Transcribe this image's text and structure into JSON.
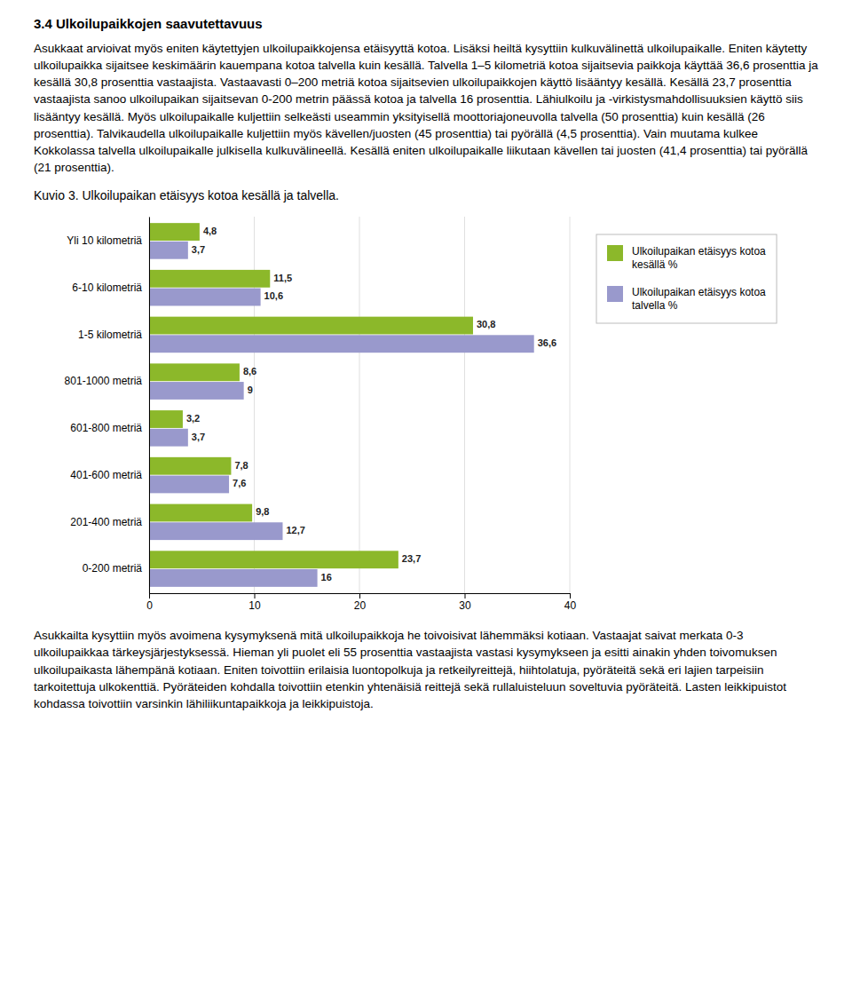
{
  "chart_data": {
    "type": "bar",
    "orientation": "horizontal",
    "title": "Kuvio 3. Ulkoilupaikan etäisyys kotoa kesällä ja talvella.",
    "annotations": [
      "3.4 Ulkoilupaikkojen saavutettavuus",
      "Asukkaat arvioivat myös eniten käytettyjen ulkoilupaikkojensa etäisyyttä kotoa. Lisäksi heiltä kysyttiin kulkuvälinettä ulkoilupaikalle. Eniten käytetty ulkoilupaikka sijaitsee keskimäärin kauempana kotoa talvella kuin kesällä. Talvella 1–5 kilometriä kotoa sijaitsevia paikkoja käyttää 36,6 prosenttia ja kesällä 30,8 prosenttia vastaajista. Vastaavasti 0–200 metriä kotoa sijaitsevien ulkoilupaikkojen käyttö lisääntyy kesällä. Kesällä 23,7 prosenttia vastaajista sanoo ulkoilupaikan sijaitsevan 0-200 metrin päässä kotoa ja talvella 16 prosenttia. Lähiulkoilu ja -virkistysmahdollisuuksien käyttö siis lisääntyy kesällä. Myös ulkoilupaikalle kuljettiin selkeästi useammin yksityisellä moottoriajoneuvolla talvella (50 prosenttia) kuin kesällä (26 prosenttia). Talvikaudella ulkoilupaikalle kuljettiin myös kävellen/juosten (45 prosenttia) tai pyörällä (4,5 prosenttia). Vain muutama kulkee Kokkolassa talvella ulkoilupaikalle julkisella kulkuvälineellä. Kesällä eniten ulkoilupaikalle liikutaan kävellen tai juosten (41,4 prosenttia) tai pyörällä (21 prosenttia).",
      "Asukkailta kysyttiin myös avoimena kysymyksenä mitä ulkoilupaikkoja he toivoisivat lähemmäksi kotiaan. Vastaajat saivat merkata 0-3 ulkoilupaikkaa tärkeysjärjestyksessä. Hieman yli puolet eli 55 prosenttia vastaajista vastasi kysymykseen ja esitti ainakin yhden toivomuksen ulkoilupaikasta lähempänä kotiaan. Eniten toivottiin erilaisia luontopolkuja ja retkeilyreittejä, hiihtolatuja, pyöräteitä sekä eri lajien tarpeisiin tarkoitettuja ulkokenttiä. Pyöräteiden kohdalla toivottiin etenkin yhtenäisiä reittejä sekä rullaluisteluun soveltuvia pyöräteitä. Lasten leikkipuistot kohdassa toivottiin varsinkin lähiliikuntapaikkoja ja leikkipuistoja."
    ],
    "categories": [
      "0-200 metriä",
      "201-400 metriä",
      "401-600 metriä",
      "601-800 metriä",
      "801-1000 metriä",
      "1-5 kilometriä",
      "6-10 kilometriä",
      "Yli 10 kilometriä"
    ],
    "series": [
      {
        "name": "Ulkoilupaikan etäisyys kotoa\nkesällä %",
        "color": "#8cb82a",
        "values": [
          23.7,
          9.8,
          7.8,
          3.2,
          8.6,
          30.8,
          11.5,
          4.8
        ],
        "value_labels": [
          "23,7",
          "9,8",
          "7,8",
          "3,2",
          "8,6",
          "30,8",
          "11,5",
          "4,8"
        ]
      },
      {
        "name": "Ulkoilupaikan etäisyys kotoa\ntalvella %",
        "color": "#9999cc",
        "values": [
          16.0,
          12.7,
          7.6,
          3.7,
          9.0,
          36.6,
          10.6,
          3.7
        ],
        "value_labels": [
          "16",
          "12,7",
          "7,6",
          "3,7",
          "9",
          "36,6",
          "10,6",
          "3,7"
        ]
      }
    ],
    "xlim": [
      0,
      40
    ],
    "xticks": [
      0,
      10,
      20,
      30,
      40
    ],
    "grid": true,
    "data_labels": true,
    "legend": "right"
  }
}
